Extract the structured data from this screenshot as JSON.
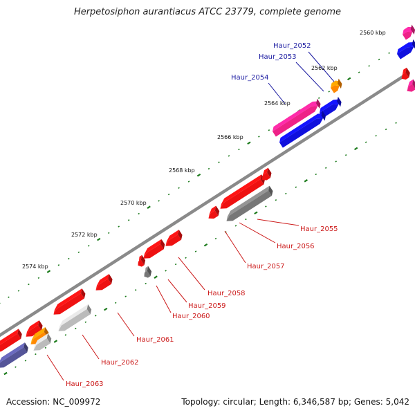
{
  "title": "Herpetosiphon aurantiacus ATCC 23779, complete genome",
  "footer": {
    "accession": "Accession: NC_009972",
    "summary": "Topology: circular; Length: 6,346,587 bp; Genes: 5,042"
  },
  "colors": {
    "backbone": "#8a8a8a",
    "tick": "#1a7a1a",
    "label_forward": "#1a1aa0",
    "label_reverse": "#cc1a1a",
    "red": "#ee1111",
    "blue": "#1010dd",
    "magenta": "#ee2288",
    "orange": "#ff8800",
    "gray": "#777777",
    "lightgray": "#bbbbbb",
    "slate": "#555599",
    "pink": "#ee2288"
  },
  "position_labels": [
    "2560 kbp",
    "2562 kbp",
    "2564 kbp",
    "2566 kbp",
    "2568 kbp",
    "2570 kbp",
    "2572 kbp",
    "2574 kbp"
  ],
  "genes": [
    {
      "name": "Haur_2052",
      "strand": "forward"
    },
    {
      "name": "Haur_2053",
      "strand": "forward"
    },
    {
      "name": "Haur_2054",
      "strand": "forward"
    },
    {
      "name": "Haur_2055",
      "strand": "reverse"
    },
    {
      "name": "Haur_2056",
      "strand": "reverse"
    },
    {
      "name": "Haur_2057",
      "strand": "reverse"
    },
    {
      "name": "Haur_2058",
      "strand": "reverse"
    },
    {
      "name": "Haur_2059",
      "strand": "reverse"
    },
    {
      "name": "Haur_2060",
      "strand": "reverse"
    },
    {
      "name": "Haur_2061",
      "strand": "reverse"
    },
    {
      "name": "Haur_2062",
      "strand": "reverse"
    },
    {
      "name": "Haur_2063",
      "strand": "reverse"
    }
  ]
}
